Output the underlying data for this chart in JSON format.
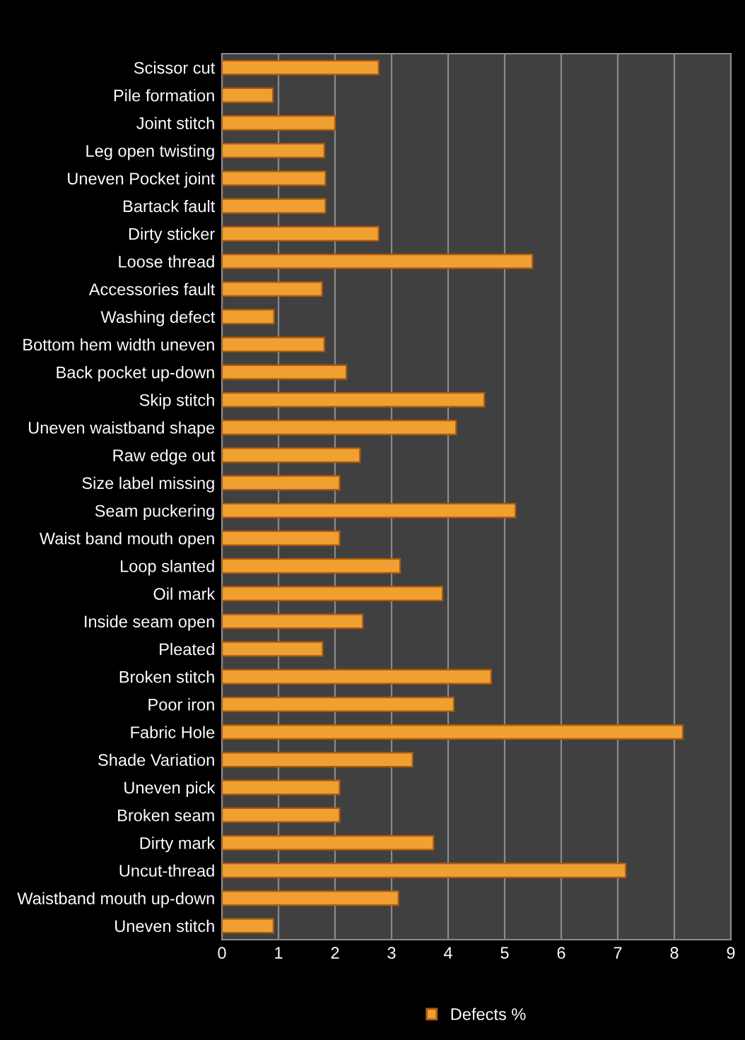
{
  "chart_data": {
    "type": "bar",
    "orientation": "horizontal",
    "categories": [
      "Scissor cut",
      "Pile formation",
      "Joint stitch",
      "Leg open twisting",
      "Uneven Pocket joint",
      "Bartack fault",
      "Dirty sticker",
      "Loose thread",
      "Accessories fault",
      "Washing defect",
      "Bottom hem width uneven",
      "Back pocket up-down",
      "Skip stitch",
      "Uneven waistband shape",
      "Raw edge out",
      "Size label missing",
      "Seam puckering",
      "Waist band mouth open",
      "Loop slanted",
      "Oil mark",
      "Inside seam open",
      "Pleated",
      "Broken stitch",
      "Poor iron",
      "Fabric Hole",
      "Shade Variation",
      "Uneven pick",
      "Broken seam",
      "Dirty mark",
      "Uncut-thread",
      "Waistband mouth up-down",
      "Uneven stitch"
    ],
    "series": [
      {
        "name": "Defects %",
        "color": "#f0a030",
        "values": [
          2.77,
          0.9,
          2.0,
          1.81,
          1.83,
          1.83,
          2.77,
          5.49,
          1.77,
          0.92,
          1.81,
          2.2,
          4.64,
          4.14,
          2.44,
          2.08,
          5.19,
          2.08,
          3.15,
          3.9,
          2.49,
          1.78,
          4.76,
          4.1,
          8.15,
          3.37,
          2.08,
          2.08,
          3.74,
          7.14,
          3.12,
          0.91
        ]
      }
    ],
    "xlim": [
      0,
      9
    ],
    "xticks": [
      0,
      1,
      2,
      3,
      4,
      5,
      6,
      7,
      8,
      9
    ],
    "grid": "x",
    "legend": "bottom"
  }
}
